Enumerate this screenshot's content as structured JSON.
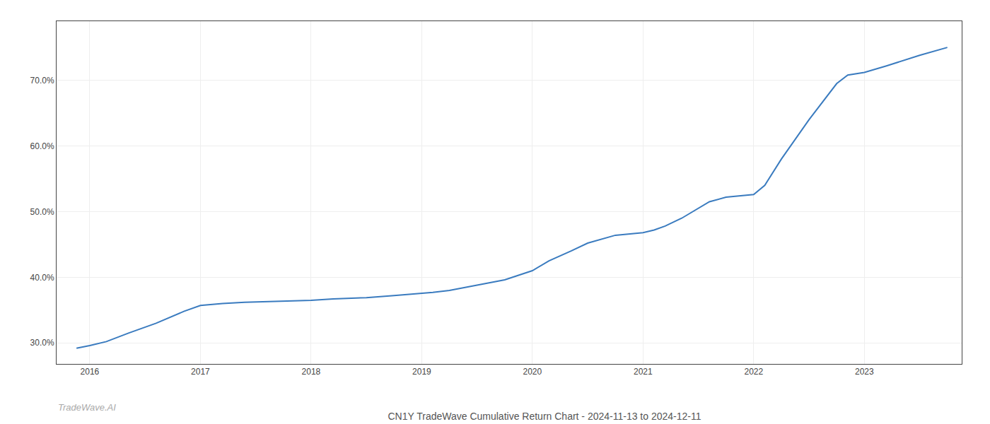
{
  "chart_data": {
    "type": "line",
    "title": "CN1Y TradeWave Cumulative Return Chart - 2024-11-13 to 2024-12-11",
    "annotations": [
      "TradeWave.AI"
    ],
    "x": [
      2015.88,
      2016.0,
      2016.15,
      2016.35,
      2016.6,
      2016.85,
      2017.0,
      2017.2,
      2017.4,
      2017.6,
      2017.8,
      2018.0,
      2018.2,
      2018.5,
      2018.75,
      2019.0,
      2019.1,
      2019.25,
      2019.5,
      2019.75,
      2020.0,
      2020.15,
      2020.35,
      2020.5,
      2020.75,
      2021.0,
      2021.1,
      2021.2,
      2021.35,
      2021.5,
      2021.6,
      2021.75,
      2021.9,
      2022.0,
      2022.1,
      2022.25,
      2022.5,
      2022.75,
      2022.85,
      2023.0,
      2023.2,
      2023.5,
      2023.75
    ],
    "values": [
      0.292,
      0.296,
      0.302,
      0.315,
      0.33,
      0.348,
      0.357,
      0.36,
      0.362,
      0.363,
      0.364,
      0.365,
      0.367,
      0.369,
      0.372,
      0.375,
      0.377,
      0.38,
      0.388,
      0.396,
      0.41,
      0.425,
      0.44,
      0.452,
      0.464,
      0.468,
      0.472,
      0.478,
      0.49,
      0.505,
      0.515,
      0.522,
      0.524,
      0.526,
      0.54,
      0.58,
      0.64,
      0.695,
      0.708,
      0.712,
      0.722,
      0.738,
      0.75
    ],
    "color": "#3a7bbf",
    "xlim": [
      2015.7,
      2023.88
    ],
    "ylim": [
      0.268,
      0.79
    ],
    "xticks": [
      2016,
      2017,
      2018,
      2019,
      2020,
      2021,
      2022,
      2023
    ],
    "yticks": [
      {
        "value": 0.3,
        "label": "30.0%"
      },
      {
        "value": 0.4,
        "label": "40.0%"
      },
      {
        "value": 0.5,
        "label": "50.0%"
      },
      {
        "value": 0.6,
        "label": "60.0%"
      },
      {
        "value": 0.7,
        "label": "70.0%"
      }
    ],
    "grid": true
  }
}
